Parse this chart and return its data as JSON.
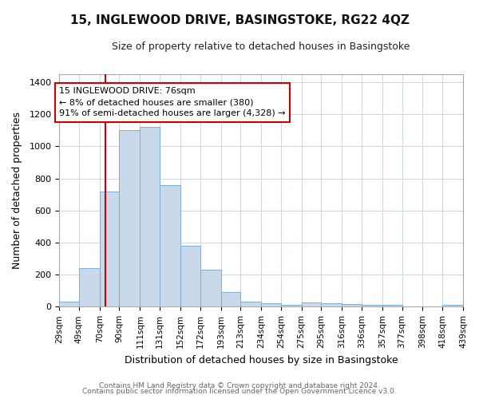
{
  "title": "15, INGLEWOOD DRIVE, BASINGSTOKE, RG22 4QZ",
  "subtitle": "Size of property relative to detached houses in Basingstoke",
  "xlabel": "Distribution of detached houses by size in Basingstoke",
  "ylabel": "Number of detached properties",
  "bin_edges": [
    29,
    49,
    70,
    90,
    111,
    131,
    152,
    172,
    193,
    213,
    234,
    254,
    275,
    295,
    316,
    336,
    357,
    377,
    398,
    418,
    439
  ],
  "bin_heights": [
    30,
    240,
    720,
    1100,
    1120,
    760,
    380,
    230,
    90,
    30,
    20,
    10,
    25,
    20,
    15,
    10,
    10,
    0,
    0,
    10
  ],
  "bar_facecolor": "#c9d9ec",
  "bar_edgecolor": "#7fafd4",
  "vline_x": 76,
  "vline_color": "#cc0000",
  "annotation_text": "15 INGLEWOOD DRIVE: 76sqm\n← 8% of detached houses are smaller (380)\n91% of semi-detached houses are larger (4,328) →",
  "annotation_box_facecolor": "#ffffff",
  "annotation_box_edgecolor": "#cc0000",
  "ylim": [
    0,
    1450
  ],
  "yticks": [
    0,
    200,
    400,
    600,
    800,
    1000,
    1200,
    1400
  ],
  "background_color": "#ffffff",
  "axes_facecolor": "#ffffff",
  "grid_color": "#d0d8e4",
  "footer_line1": "Contains HM Land Registry data © Crown copyright and database right 2024.",
  "footer_line2": "Contains public sector information licensed under the Open Government Licence v3.0."
}
